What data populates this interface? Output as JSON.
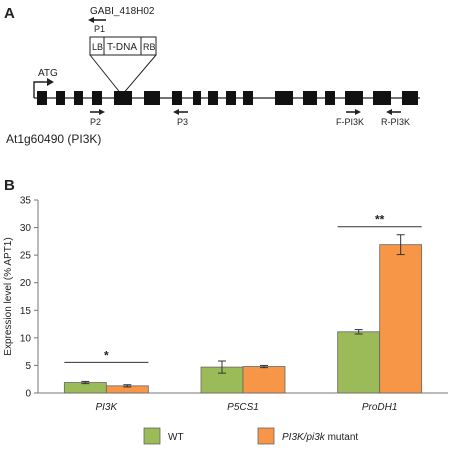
{
  "panelA": {
    "letter": "A",
    "insertion_name": "GABI_418H02",
    "primer_p1": "P1",
    "tdna_lb": "LB",
    "tdna_label": "T-DNA",
    "tdna_rb": "RB",
    "start_codon": "ATG",
    "primer_p2": "P2",
    "primer_p3": "P3",
    "primer_fpi3k": "F-PI3K",
    "primer_rpi3k": "R-PI3K",
    "gene_label": "At1g60490 (PI3K)"
  },
  "panelB": {
    "letter": "B",
    "significance": [
      "*",
      "",
      "**"
    ]
  },
  "chart_data": {
    "type": "bar",
    "ylabel": "Expression level (% APT1)",
    "ylim": [
      0,
      35
    ],
    "yticks": [
      0,
      5,
      10,
      15,
      20,
      25,
      30,
      35
    ],
    "categories": [
      "PI3K",
      "P5CS1",
      "ProDH1"
    ],
    "series": [
      {
        "name": "WT",
        "values": [
          1.9,
          4.7,
          11.1
        ],
        "errors": [
          0.2,
          1.1,
          0.4
        ],
        "color": "#9bbb59"
      },
      {
        "name": "PI3K/pi3k mutant",
        "values": [
          1.3,
          4.8,
          26.9
        ],
        "errors": [
          0.2,
          0.2,
          1.8
        ],
        "color": "#f79646"
      }
    ],
    "grid": false,
    "legend_position": "bottom"
  }
}
